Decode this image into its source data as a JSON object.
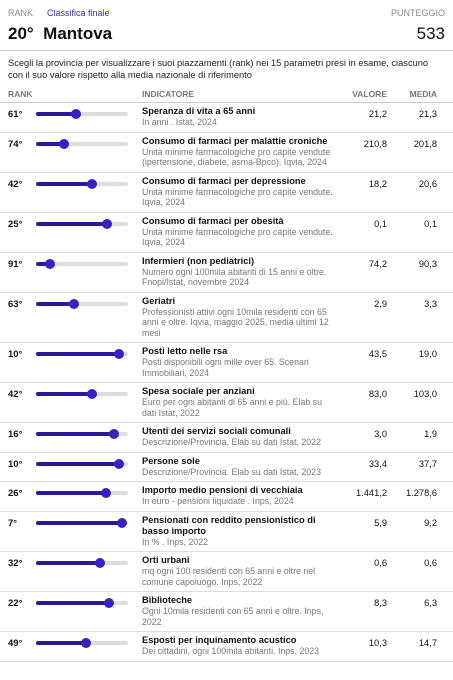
{
  "header": {
    "rank_label": "RANK",
    "tab": "Classifica finale",
    "score_label": "PUNTEGGIO",
    "rank": "20°",
    "province": "Mantova",
    "score": "533"
  },
  "intro": "Scegli la provincia per visualizzare i suoi piazzamenti (rank) nei 15 parametri presi in esame, ciascuno con il suo valore rispetto alla media nazionale di riferimento",
  "table": {
    "columns": [
      "RANK",
      "INDICATORE",
      "VALORE",
      "MEDIA"
    ],
    "rows": [
      {
        "rank": 61,
        "rank_label": "61°",
        "title": "Speranza di vita a 65 anni",
        "desc": "In anni . Istat, 2024",
        "value": "21,2",
        "mean": "21,3"
      },
      {
        "rank": 74,
        "rank_label": "74°",
        "title": "Consumo di farmaci per malattie croniche",
        "desc": "Unità minime farmacologiche pro capite vendute (ipertensione, diabete, asma-Bpco). Iqvia, 2024",
        "value": "210,8",
        "mean": "201,8"
      },
      {
        "rank": 42,
        "rank_label": "42°",
        "title": "Consumo di farmaci per depressione",
        "desc": "Unità minime farmacologiche pro capite vendute. Iqvia, 2024",
        "value": "18,2",
        "mean": "20,6"
      },
      {
        "rank": 25,
        "rank_label": "25°",
        "title": "Consumo di farmaci per obesità",
        "desc": "Unità minime farmacologiche pro capite vendute. Iqvia, 2024",
        "value": "0,1",
        "mean": "0,1"
      },
      {
        "rank": 91,
        "rank_label": "91°",
        "title": "Infermieri (non pediatrici)",
        "desc": "Numero ogni 100mila abitanti di 15 anni e oltre. Fnopi/Istat, novembre 2024",
        "value": "74,2",
        "mean": "90,3"
      },
      {
        "rank": 63,
        "rank_label": "63°",
        "title": "Geriatri",
        "desc": "Professionisti attivi ogni 10mila residenti con 65 anni e oltre. Iqvia, maggio 2025, media ultimi 12 mesi",
        "value": "2,9",
        "mean": "3,3"
      },
      {
        "rank": 10,
        "rank_label": "10°",
        "title": "Posti letto nelle rsa",
        "desc": "Posti disponibili ogni mille over 65. Scenari Immobiliari, 2024",
        "value": "43,5",
        "mean": "19,0"
      },
      {
        "rank": 42,
        "rank_label": "42°",
        "title": "Spesa sociale per anziani",
        "desc": "Euro per ogni abitanti di 65 anni e più. Elab su dati Istat, 2022",
        "value": "83,0",
        "mean": "103,0"
      },
      {
        "rank": 16,
        "rank_label": "16°",
        "title": "Utenti dei servizi sociali comunali",
        "desc": "Descrizione/Provincia. Elab su dati Istat, 2022",
        "value": "3,0",
        "mean": "1,9"
      },
      {
        "rank": 10,
        "rank_label": "10°",
        "title": "Persone sole",
        "desc": "Descrizione/Provincia. Elab su dati Istat, 2023",
        "value": "33,4",
        "mean": "37,7"
      },
      {
        "rank": 26,
        "rank_label": "26°",
        "title": "Importo medio pensioni di vecchiaia",
        "desc": "In euro - pensioni liquidate . Inps, 2024",
        "value": "1.441,2",
        "mean": "1.278,6"
      },
      {
        "rank": 7,
        "rank_label": "7°",
        "title": "Pensionati con reddito pensionistico di basso importo",
        "desc": "In % . Inps, 2022",
        "value": "5,9",
        "mean": "9,2"
      },
      {
        "rank": 32,
        "rank_label": "32°",
        "title": "Orti urbani",
        "desc": "mq ogni 100 residenti con 65 anni e oltre nel comune capoluogo. Inps, 2022",
        "value": "0,6",
        "mean": "0,6"
      },
      {
        "rank": 22,
        "rank_label": "22°",
        "title": "Biblioteche",
        "desc": "Ogni 10mila residenti con 65 anni e oltre. Inps, 2022",
        "value": "8,3",
        "mean": "6,3"
      },
      {
        "rank": 49,
        "rank_label": "49°",
        "title": "Esposti per inquinamento acustico",
        "desc": "Dei cittadini, ogni 100mila abitanti. Inps, 2023",
        "value": "10,3",
        "mean": "14,7"
      }
    ]
  }
}
